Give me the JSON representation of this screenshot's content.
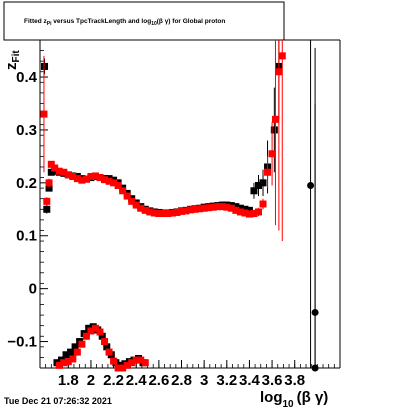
{
  "colors": {
    "black_series": "#000000",
    "red_series": "#ff0000",
    "axis": "#000000"
  },
  "chart_data": {
    "type": "scatter",
    "title_parts": [
      "Fitted  z",
      "Pi",
      "  versus TpcTrackLength and log",
      "10",
      "(β γ) for Global proton"
    ],
    "xlabel_parts": [
      "log",
      "10",
      "(β γ)"
    ],
    "ylabel_parts": [
      "z",
      "Fit"
    ],
    "xlim": [
      1.55,
      4.2
    ],
    "ylim": [
      -0.15,
      0.47
    ],
    "x_tick_labels": [
      {
        "v": 1.8,
        "t": "1.8"
      },
      {
        "v": 2.0,
        "t": "2"
      },
      {
        "v": 2.2,
        "t": "2.2"
      },
      {
        "v": 2.4,
        "t": "2.4"
      },
      {
        "v": 2.6,
        "t": "2.6"
      },
      {
        "v": 2.8,
        "t": "2.8"
      },
      {
        "v": 3.0,
        "t": "3"
      },
      {
        "v": 3.2,
        "t": "3.2"
      },
      {
        "v": 3.4,
        "t": "3.4"
      },
      {
        "v": 3.6,
        "t": "3.6"
      },
      {
        "v": 3.8,
        "t": "3.8"
      }
    ],
    "y_tick_labels": [
      {
        "v": 0.4,
        "t": "0.4"
      },
      {
        "v": 0.3,
        "t": "0.3"
      },
      {
        "v": 0.2,
        "t": "0.2"
      },
      {
        "v": 0.1,
        "t": "0.1"
      },
      {
        "v": 0.0,
        "t": "0"
      },
      {
        "v": -0.1,
        "t": "−0.1"
      }
    ],
    "series": [
      {
        "color": "#000000",
        "points": [
          [
            1.59,
            0.42,
            0.015
          ],
          [
            1.61,
            0.15,
            0.008
          ],
          [
            1.63,
            0.19,
            0.006
          ],
          [
            1.65,
            0.22,
            0.004
          ],
          [
            1.68,
            0.222,
            0.003
          ],
          [
            1.72,
            0.22,
            0.003
          ],
          [
            1.76,
            0.218,
            0.003
          ],
          [
            1.8,
            0.215,
            0.003
          ],
          [
            1.84,
            0.213,
            0.003
          ],
          [
            1.88,
            0.212,
            0.003
          ],
          [
            1.92,
            0.208,
            0.003
          ],
          [
            1.96,
            0.207,
            0.003
          ],
          [
            2.0,
            0.21,
            0.003
          ],
          [
            2.04,
            0.212,
            0.003
          ],
          [
            2.08,
            0.21,
            0.003
          ],
          [
            2.12,
            0.208,
            0.003
          ],
          [
            2.16,
            0.208,
            0.003
          ],
          [
            2.2,
            0.205,
            0.003
          ],
          [
            2.24,
            0.2,
            0.003
          ],
          [
            2.28,
            0.19,
            0.003
          ],
          [
            2.32,
            0.18,
            0.003
          ],
          [
            2.36,
            0.17,
            0.003
          ],
          [
            2.4,
            0.162,
            0.003
          ],
          [
            2.44,
            0.155,
            0.003
          ],
          [
            2.48,
            0.15,
            0.003
          ],
          [
            2.52,
            0.147,
            0.003
          ],
          [
            2.56,
            0.145,
            0.003
          ],
          [
            2.6,
            0.144,
            0.003
          ],
          [
            2.64,
            0.143,
            0.003
          ],
          [
            2.68,
            0.143,
            0.003
          ],
          [
            2.72,
            0.144,
            0.003
          ],
          [
            2.76,
            0.145,
            0.003
          ],
          [
            2.8,
            0.147,
            0.003
          ],
          [
            2.84,
            0.148,
            0.003
          ],
          [
            2.88,
            0.15,
            0.003
          ],
          [
            2.92,
            0.151,
            0.003
          ],
          [
            2.96,
            0.152,
            0.003
          ],
          [
            3.0,
            0.154,
            0.003
          ],
          [
            3.04,
            0.155,
            0.003
          ],
          [
            3.08,
            0.156,
            0.003
          ],
          [
            3.12,
            0.157,
            0.003
          ],
          [
            3.16,
            0.158,
            0.003
          ],
          [
            3.2,
            0.158,
            0.004
          ],
          [
            3.24,
            0.157,
            0.004
          ],
          [
            3.28,
            0.155,
            0.004
          ],
          [
            3.32,
            0.152,
            0.004
          ],
          [
            3.36,
            0.15,
            0.005
          ],
          [
            3.4,
            0.148,
            0.006
          ],
          [
            3.44,
            0.185,
            0.015
          ],
          [
            3.48,
            0.195,
            0.02
          ],
          [
            3.52,
            0.2,
            0.025
          ],
          [
            3.56,
            0.23,
            0.05
          ],
          [
            3.62,
            0.3,
            0.08
          ],
          [
            3.66,
            0.42,
            0.1
          ],
          [
            3.94,
            0.195,
            0.5
          ],
          [
            3.98,
            -0.045,
            0.5
          ],
          [
            3.98,
            -0.15,
            0.5
          ],
          [
            1.7,
            -0.14,
            0.003
          ],
          [
            1.74,
            -0.135,
            0.003
          ],
          [
            1.78,
            -0.125,
            0.003
          ],
          [
            1.82,
            -0.12,
            0.003
          ],
          [
            1.86,
            -0.11,
            0.003
          ],
          [
            1.9,
            -0.1,
            0.003
          ],
          [
            1.94,
            -0.085,
            0.003
          ],
          [
            1.98,
            -0.075,
            0.003
          ],
          [
            2.02,
            -0.072,
            0.003
          ],
          [
            2.06,
            -0.078,
            0.003
          ],
          [
            2.1,
            -0.09,
            0.003
          ],
          [
            2.14,
            -0.11,
            0.003
          ],
          [
            2.18,
            -0.125,
            0.004
          ],
          [
            2.22,
            -0.14,
            0.004
          ],
          [
            2.26,
            -0.145,
            0.004
          ],
          [
            2.3,
            -0.142,
            0.004
          ],
          [
            2.34,
            -0.138,
            0.004
          ],
          [
            2.38,
            -0.135,
            0.004
          ],
          [
            2.42,
            -0.132,
            0.004
          ],
          [
            2.46,
            -0.14,
            0.004
          ]
        ]
      },
      {
        "color": "#ff0000",
        "points": [
          [
            1.585,
            0.33,
            0.11
          ],
          [
            1.61,
            0.165,
            0.008
          ],
          [
            1.63,
            0.2,
            0.008
          ],
          [
            1.65,
            0.235,
            0.005
          ],
          [
            1.68,
            0.228,
            0.004
          ],
          [
            1.72,
            0.222,
            0.003
          ],
          [
            1.76,
            0.22,
            0.003
          ],
          [
            1.8,
            0.215,
            0.003
          ],
          [
            1.84,
            0.212,
            0.003
          ],
          [
            1.88,
            0.208,
            0.003
          ],
          [
            1.92,
            0.205,
            0.003
          ],
          [
            1.96,
            0.207,
            0.003
          ],
          [
            2.0,
            0.212,
            0.003
          ],
          [
            2.04,
            0.213,
            0.003
          ],
          [
            2.08,
            0.21,
            0.003
          ],
          [
            2.12,
            0.206,
            0.003
          ],
          [
            2.16,
            0.203,
            0.003
          ],
          [
            2.2,
            0.2,
            0.003
          ],
          [
            2.24,
            0.195,
            0.003
          ],
          [
            2.28,
            0.185,
            0.003
          ],
          [
            2.32,
            0.175,
            0.003
          ],
          [
            2.36,
            0.165,
            0.003
          ],
          [
            2.4,
            0.158,
            0.003
          ],
          [
            2.44,
            0.152,
            0.003
          ],
          [
            2.48,
            0.148,
            0.003
          ],
          [
            2.52,
            0.145,
            0.003
          ],
          [
            2.56,
            0.143,
            0.003
          ],
          [
            2.6,
            0.142,
            0.003
          ],
          [
            2.64,
            0.142,
            0.003
          ],
          [
            2.68,
            0.142,
            0.003
          ],
          [
            2.72,
            0.143,
            0.003
          ],
          [
            2.76,
            0.144,
            0.003
          ],
          [
            2.8,
            0.146,
            0.003
          ],
          [
            2.84,
            0.147,
            0.003
          ],
          [
            2.88,
            0.149,
            0.003
          ],
          [
            2.92,
            0.15,
            0.003
          ],
          [
            2.96,
            0.151,
            0.003
          ],
          [
            3.0,
            0.152,
            0.003
          ],
          [
            3.04,
            0.153,
            0.003
          ],
          [
            3.08,
            0.154,
            0.003
          ],
          [
            3.12,
            0.155,
            0.003
          ],
          [
            3.16,
            0.155,
            0.003
          ],
          [
            3.2,
            0.154,
            0.004
          ],
          [
            3.24,
            0.152,
            0.004
          ],
          [
            3.28,
            0.148,
            0.004
          ],
          [
            3.32,
            0.145,
            0.005
          ],
          [
            3.36,
            0.143,
            0.005
          ],
          [
            3.4,
            0.141,
            0.006
          ],
          [
            3.44,
            0.142,
            0.007
          ],
          [
            3.48,
            0.145,
            0.008
          ],
          [
            3.52,
            0.16,
            0.01
          ],
          [
            3.56,
            0.22,
            0.03
          ],
          [
            3.6,
            0.255,
            0.06
          ],
          [
            3.63,
            0.32,
            0.2
          ],
          [
            3.66,
            0.41,
            0.3
          ],
          [
            3.69,
            0.44,
            0.35
          ],
          [
            1.72,
            -0.145,
            0.003
          ],
          [
            1.76,
            -0.14,
            0.003
          ],
          [
            1.8,
            -0.138,
            0.003
          ],
          [
            1.84,
            -0.133,
            0.003
          ],
          [
            1.88,
            -0.12,
            0.003
          ],
          [
            1.92,
            -0.105,
            0.003
          ],
          [
            1.96,
            -0.09,
            0.003
          ],
          [
            2.0,
            -0.08,
            0.003
          ],
          [
            2.04,
            -0.075,
            0.003
          ],
          [
            2.08,
            -0.082,
            0.003
          ],
          [
            2.12,
            -0.1,
            0.003
          ],
          [
            2.16,
            -0.12,
            0.003
          ],
          [
            2.2,
            -0.137,
            0.004
          ],
          [
            2.24,
            -0.15,
            0.004
          ],
          [
            2.28,
            -0.15,
            0.004
          ],
          [
            2.32,
            -0.145,
            0.004
          ],
          [
            2.36,
            -0.14,
            0.004
          ],
          [
            2.4,
            -0.135,
            0.004
          ],
          [
            2.44,
            -0.135,
            0.004
          ],
          [
            2.48,
            -0.14,
            0.004
          ]
        ]
      }
    ]
  },
  "footer": {
    "timestamp": "Tue Dec 21 07:26:32 2021"
  }
}
